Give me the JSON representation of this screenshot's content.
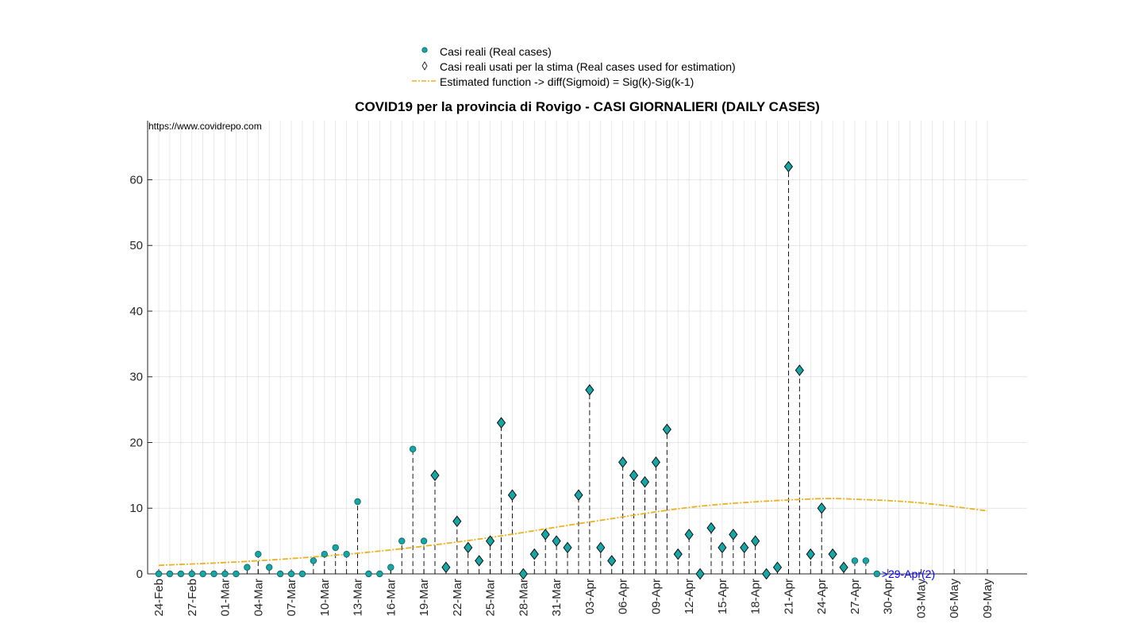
{
  "legend": {
    "real_cases": "Casi reali (Real cases)",
    "used_cases": "Casi reali usati per la stima (Real cases used for estimation)",
    "estimated": "Estimated function -> diff(Sigmoid) = Sig(k)-Sig(k-1)"
  },
  "source_url": "https://www.covidrepo.com",
  "annotation": ">29-Apr(2)",
  "colors": {
    "marker_fill": "#17a5a5",
    "marker_edge": "#0b5e5e",
    "estimate_line": "#edb120",
    "stem": "#000000",
    "annotation": "#0000ff",
    "grid": "#dedede"
  },
  "chart_data": {
    "type": "scatter",
    "title": "COVID19 per la provincia di Rovigo - CASI GIORNALIERI (DAILY CASES)",
    "xlabel": "",
    "ylabel": "",
    "ylim": [
      0,
      69
    ],
    "y_ticks": [
      0,
      10,
      20,
      30,
      40,
      50,
      60
    ],
    "grid": true,
    "legend_position": "top-center",
    "dates": [
      "24-Feb",
      "25-Feb",
      "26-Feb",
      "27-Feb",
      "28-Feb",
      "29-Feb",
      "01-Mar",
      "02-Mar",
      "03-Mar",
      "04-Mar",
      "05-Mar",
      "06-Mar",
      "07-Mar",
      "08-Mar",
      "09-Mar",
      "10-Mar",
      "11-Mar",
      "12-Mar",
      "13-Mar",
      "14-Mar",
      "15-Mar",
      "16-Mar",
      "17-Mar",
      "18-Mar",
      "19-Mar",
      "20-Mar",
      "21-Mar",
      "22-Mar",
      "23-Mar",
      "24-Mar",
      "25-Mar",
      "26-Mar",
      "27-Mar",
      "28-Mar",
      "29-Mar",
      "30-Mar",
      "31-Mar",
      "01-Apr",
      "02-Apr",
      "03-Apr",
      "04-Apr",
      "05-Apr",
      "06-Apr",
      "07-Apr",
      "08-Apr",
      "09-Apr",
      "10-Apr",
      "11-Apr",
      "12-Apr",
      "13-Apr",
      "14-Apr",
      "15-Apr",
      "16-Apr",
      "17-Apr",
      "18-Apr",
      "19-Apr",
      "20-Apr",
      "21-Apr",
      "22-Apr",
      "23-Apr",
      "24-Apr",
      "25-Apr",
      "26-Apr",
      "27-Apr",
      "28-Apr",
      "29-Apr",
      "30-Apr",
      "01-May",
      "02-May",
      "03-May",
      "04-May",
      "05-May",
      "06-May",
      "07-May",
      "08-May",
      "09-May"
    ],
    "x_tick_labels": [
      "24-Feb",
      "27-Feb",
      "01-Mar",
      "04-Mar",
      "07-Mar",
      "10-Mar",
      "13-Mar",
      "16-Mar",
      "19-Mar",
      "22-Mar",
      "25-Mar",
      "28-Mar",
      "31-Mar",
      "03-Apr",
      "06-Apr",
      "09-Apr",
      "12-Apr",
      "15-Apr",
      "18-Apr",
      "21-Apr",
      "24-Apr",
      "27-Apr",
      "30-Apr",
      "03-May",
      "06-May",
      "09-May"
    ],
    "series": [
      {
        "name": "Casi reali (Real cases)",
        "marker": "circle",
        "x": [
          "24-Feb",
          "25-Feb",
          "26-Feb",
          "27-Feb",
          "28-Feb",
          "29-Feb",
          "01-Mar",
          "02-Mar",
          "03-Mar",
          "04-Mar",
          "05-Mar",
          "06-Mar",
          "07-Mar",
          "08-Mar",
          "09-Mar",
          "10-Mar",
          "11-Mar",
          "12-Mar",
          "13-Mar",
          "14-Mar",
          "15-Mar",
          "16-Mar",
          "17-Mar",
          "18-Mar",
          "19-Mar",
          "27-Apr",
          "28-Apr",
          "29-Apr"
        ],
        "y": [
          0,
          0,
          0,
          0,
          0,
          0,
          0,
          0,
          1,
          3,
          1,
          0,
          0,
          0,
          2,
          3,
          4,
          3,
          11,
          0,
          0,
          1,
          5,
          19,
          5,
          2,
          2,
          0
        ]
      },
      {
        "name": "Casi reali usati per la stima (Real cases used for estimation)",
        "marker": "diamond",
        "x": [
          "20-Mar",
          "21-Mar",
          "22-Mar",
          "23-Mar",
          "24-Mar",
          "25-Mar",
          "26-Mar",
          "27-Mar",
          "28-Mar",
          "29-Mar",
          "30-Mar",
          "31-Mar",
          "01-Apr",
          "02-Apr",
          "03-Apr",
          "04-Apr",
          "05-Apr",
          "06-Apr",
          "07-Apr",
          "08-Apr",
          "09-Apr",
          "10-Apr",
          "11-Apr",
          "12-Apr",
          "13-Apr",
          "14-Apr",
          "15-Apr",
          "16-Apr",
          "17-Apr",
          "18-Apr",
          "19-Apr",
          "20-Apr",
          "21-Apr",
          "22-Apr",
          "23-Apr",
          "24-Apr",
          "25-Apr",
          "26-Apr"
        ],
        "y": [
          15,
          1,
          8,
          4,
          2,
          5,
          23,
          12,
          0,
          3,
          6,
          5,
          4,
          12,
          28,
          4,
          2,
          17,
          15,
          14,
          17,
          22,
          3,
          6,
          0,
          7,
          4,
          6,
          4,
          5,
          0,
          1,
          62,
          31,
          3,
          10,
          3,
          1
        ]
      },
      {
        "name": "Estimated function -> diff(Sigmoid) = Sig(k)-Sig(k-1)",
        "type": "line",
        "x": [
          "24-Feb",
          "04-Mar",
          "14-Mar",
          "24-Mar",
          "03-Apr",
          "13-Apr",
          "23-Apr",
          "28-Apr",
          "03-May",
          "09-May"
        ],
        "y": [
          1.3,
          2.0,
          3.3,
          5.3,
          7.9,
          10.3,
          11.4,
          11.3,
          10.8,
          9.6
        ]
      }
    ]
  }
}
